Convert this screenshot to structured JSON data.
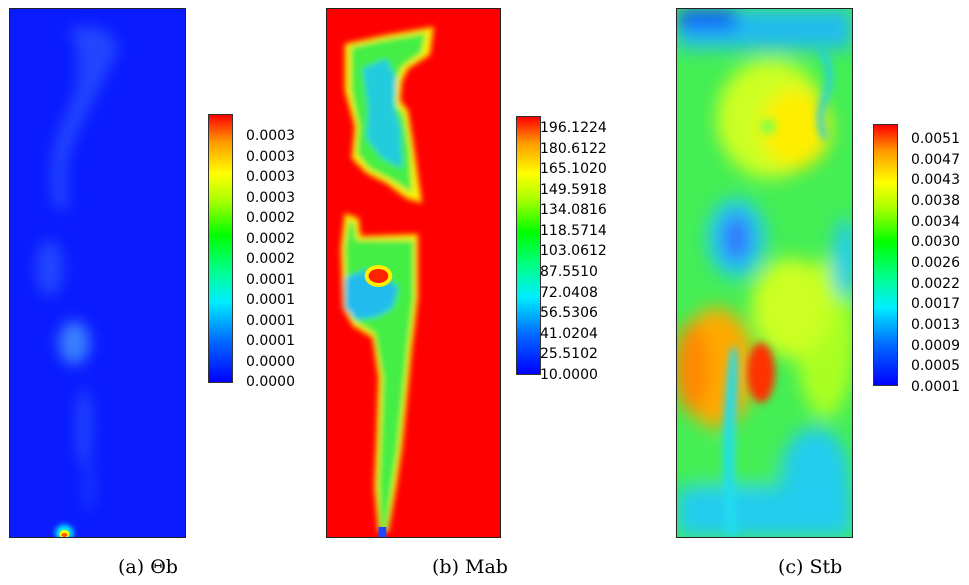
{
  "figures": [
    {
      "id": "a",
      "caption": "(a) Θb",
      "colorbar_ticks": [
        "0.0003",
        "0.0003",
        "0.0003",
        "0.0003",
        "0.0002",
        "0.0002",
        "0.0002",
        "0.0001",
        "0.0001",
        "0.0001",
        "0.0001",
        "0.0000",
        "0.0000"
      ]
    },
    {
      "id": "b",
      "caption": "(b) Mab",
      "colorbar_ticks": [
        "196.1224",
        "180.6122",
        "165.1020",
        "149.5918",
        "134.0816",
        "118.5714",
        "103.0612",
        "87.5510",
        "72.0408",
        "56.5306",
        "41.0204",
        "25.5102",
        "10.0000"
      ]
    },
    {
      "id": "c",
      "caption": "(c) Stb",
      "colorbar_ticks": [
        "0.0051",
        "0.0047",
        "0.0043",
        "0.0038",
        "0.0034",
        "0.0030",
        "0.0026",
        "0.0022",
        "0.0017",
        "0.0013",
        "0.0009",
        "0.0005",
        "0.0001"
      ]
    }
  ],
  "colormap": [
    "#0000ff",
    "#00aaff",
    "#00ffff",
    "#00ff88",
    "#00ff00",
    "#aaff00",
    "#ffff00",
    "#ffaa00",
    "#ff0000"
  ]
}
